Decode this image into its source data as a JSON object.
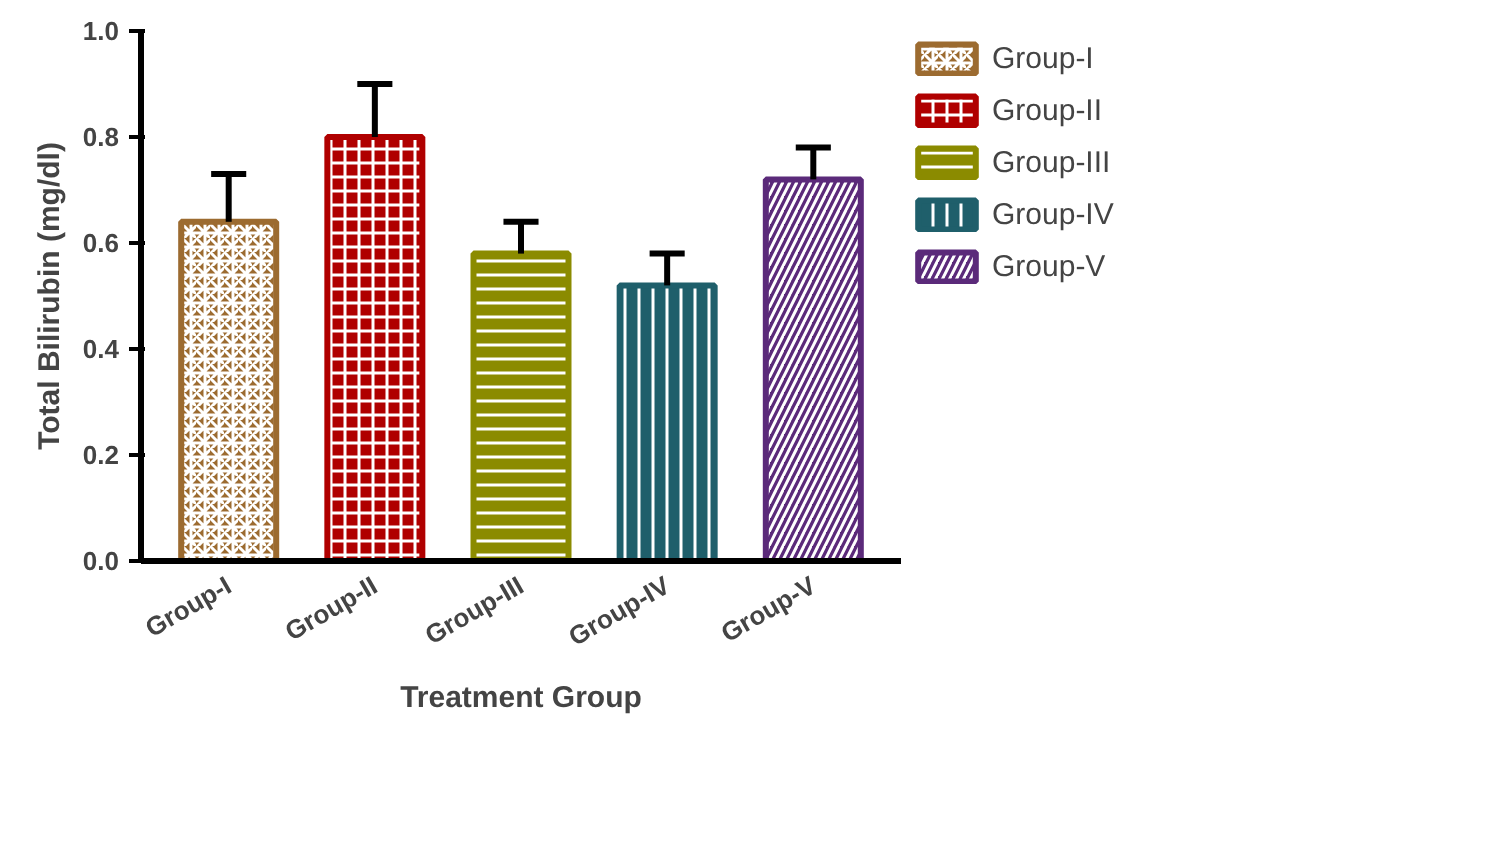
{
  "chart_data": {
    "type": "bar",
    "xlabel": "Treatment Group",
    "ylabel": "Total Bilirubin (mg/dl)",
    "categories": [
      "Group-I",
      "Group-II",
      "Group-III",
      "Group-IV",
      "Group-V"
    ],
    "stacked": true,
    "series": [
      {
        "name": "Group-I",
        "color": "#9c6b30",
        "values": [
          0.64,
          null,
          null,
          null,
          null
        ],
        "errors": [
          0.09,
          null,
          null,
          null,
          null
        ]
      },
      {
        "name": "Group-II",
        "color": "#b00000",
        "values": [
          null,
          0.8,
          null,
          null,
          null
        ],
        "errors": [
          null,
          0.1,
          null,
          null,
          null
        ]
      },
      {
        "name": "Group-III",
        "color": "#8b8b00",
        "values": [
          null,
          null,
          0.58,
          null,
          null
        ],
        "errors": [
          null,
          null,
          0.06,
          null,
          null
        ]
      },
      {
        "name": "Group-IV",
        "color": "#1f5f6b",
        "values": [
          null,
          null,
          null,
          0.52,
          null
        ],
        "errors": [
          null,
          null,
          null,
          0.06,
          null
        ]
      },
      {
        "name": "Group-V",
        "color": "#5b2a7a",
        "values": [
          null,
          null,
          null,
          null,
          0.72
        ],
        "errors": [
          null,
          null,
          null,
          null,
          0.06
        ]
      }
    ],
    "ylim": [
      0,
      1.0
    ],
    "yticks": [
      {
        "value": 0,
        "label": "0.0"
      },
      {
        "value": 0.2,
        "label": "0.2"
      },
      {
        "value": 0.4,
        "label": "0.4"
      },
      {
        "value": 0.6,
        "label": "0.6"
      },
      {
        "value": 0.8,
        "label": "0.8"
      },
      {
        "value": 1.0,
        "label": "1.0"
      }
    ],
    "grid": false,
    "legend": "right"
  }
}
